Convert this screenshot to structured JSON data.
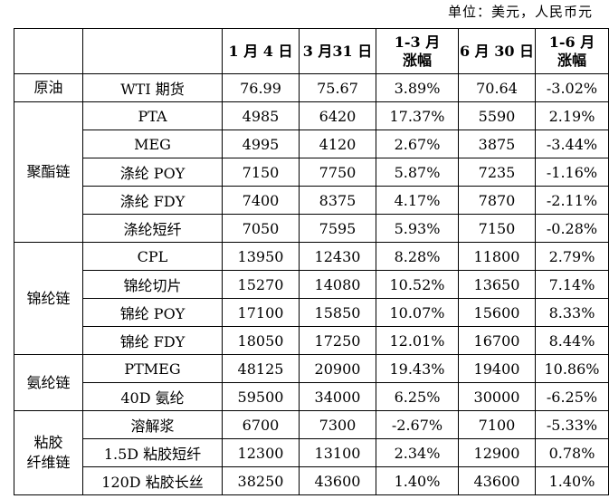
{
  "unit_note": "单位：美元，人民币元",
  "headers": {
    "blank1": "",
    "blank2": "",
    "jan4": "1 月 4 日",
    "mar31": "3 月31 日",
    "q1_change_l1": "1-3 月",
    "q1_change_l2": "涨幅",
    "jun30": "6 月 30 日",
    "h1_change_l1": "1-6 月",
    "h1_change_l2": "涨幅"
  },
  "groups": [
    {
      "name_lines": [
        "原油"
      ],
      "rows": [
        {
          "product": "WTI 期货",
          "jan4": "76.99",
          "mar31": "75.67",
          "q1_change": "3.89%",
          "jun30": "70.64",
          "h1_change": "-3.02%"
        }
      ]
    },
    {
      "name_lines": [
        "聚酯链"
      ],
      "rows": [
        {
          "product": "PTA",
          "jan4": "4985",
          "mar31": "6420",
          "q1_change": "17.37%",
          "jun30": "5590",
          "h1_change": "2.19%"
        },
        {
          "product": "MEG",
          "jan4": "4995",
          "mar31": "4120",
          "q1_change": "2.67%",
          "jun30": "3875",
          "h1_change": "-3.44%"
        },
        {
          "product": "涤纶 POY",
          "jan4": "7150",
          "mar31": "7750",
          "q1_change": "5.87%",
          "jun30": "7235",
          "h1_change": "-1.16%"
        },
        {
          "product": "涤纶 FDY",
          "jan4": "7400",
          "mar31": "8375",
          "q1_change": "4.17%",
          "jun30": "7870",
          "h1_change": "-2.11%"
        },
        {
          "product": "涤纶短纤",
          "jan4": "7050",
          "mar31": "7595",
          "q1_change": "5.93%",
          "jun30": "7150",
          "h1_change": "-0.28%"
        }
      ]
    },
    {
      "name_lines": [
        "锦纶链"
      ],
      "rows": [
        {
          "product": "CPL",
          "jan4": "13950",
          "mar31": "12430",
          "q1_change": "8.28%",
          "jun30": "11800",
          "h1_change": "2.79%"
        },
        {
          "product": "锦纶切片",
          "jan4": "15270",
          "mar31": "14080",
          "q1_change": "10.52%",
          "jun30": "13650",
          "h1_change": "7.14%"
        },
        {
          "product": "锦纶 POY",
          "jan4": "17100",
          "mar31": "15850",
          "q1_change": "10.07%",
          "jun30": "15600",
          "h1_change": "8.33%"
        },
        {
          "product": "锦纶 FDY",
          "jan4": "18050",
          "mar31": "17250",
          "q1_change": "12.01%",
          "jun30": "16700",
          "h1_change": "8.44%"
        }
      ]
    },
    {
      "name_lines": [
        "氨纶链"
      ],
      "rows": [
        {
          "product": "PTMEG",
          "jan4": "48125",
          "mar31": "20900",
          "q1_change": "19.43%",
          "jun30": "19400",
          "h1_change": "10.86%"
        },
        {
          "product": "40D 氨纶",
          "jan4": "59500",
          "mar31": "34000",
          "q1_change": "6.25%",
          "jun30": "30000",
          "h1_change": "-6.25%"
        }
      ]
    },
    {
      "name_lines": [
        "粘胶",
        "纤维链"
      ],
      "rows": [
        {
          "product": "溶解浆",
          "jan4": "6700",
          "mar31": "7300",
          "q1_change": "-2.67%",
          "jun30": "7100",
          "h1_change": "-5.33%"
        },
        {
          "product": "1.5D 粘胶短纤",
          "jan4": "12300",
          "mar31": "13100",
          "q1_change": "2.34%",
          "jun30": "12900",
          "h1_change": "0.78%"
        },
        {
          "product": "120D 粘胶长丝",
          "jan4": "38250",
          "mar31": "43600",
          "q1_change": "1.40%",
          "jun30": "43600",
          "h1_change": "1.40%"
        }
      ]
    }
  ]
}
